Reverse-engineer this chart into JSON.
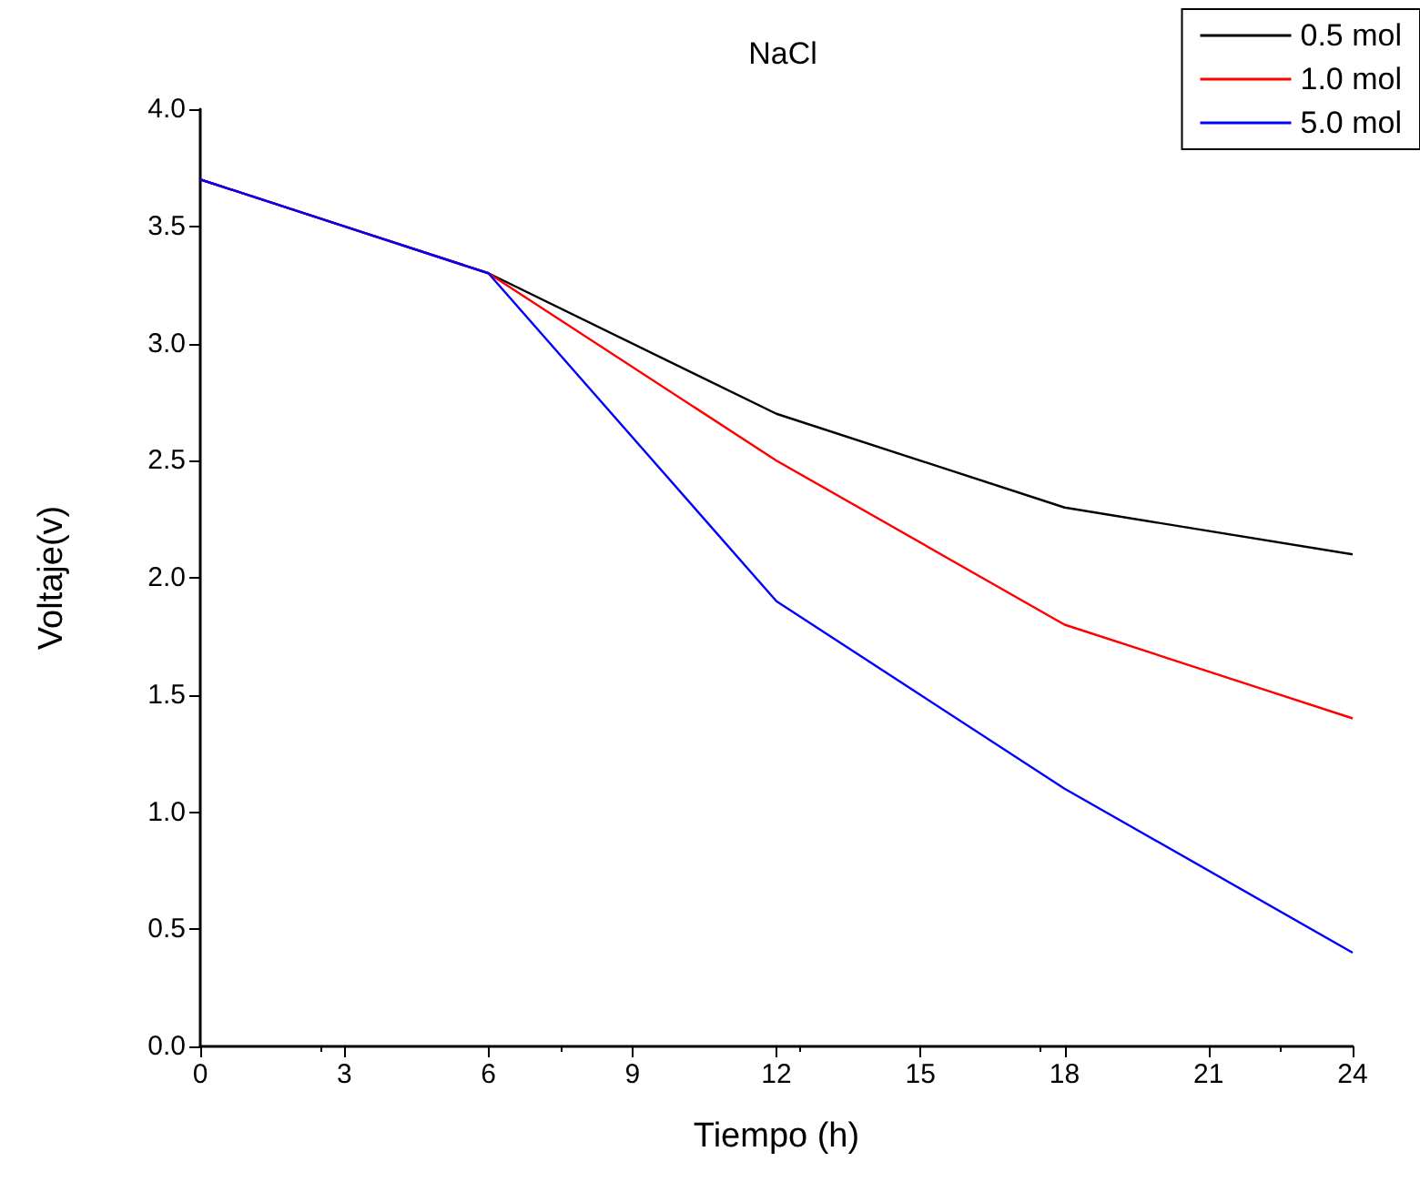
{
  "chart_data": {
    "type": "line",
    "title": "NaCl",
    "xlabel": "Tiempo (h)",
    "ylabel": "Voltaje(v)",
    "x": [
      0,
      6,
      12,
      18,
      24
    ],
    "series": [
      {
        "name": "0.5 mol",
        "color": "#000000",
        "values": [
          3.7,
          3.3,
          2.7,
          2.3,
          2.1
        ]
      },
      {
        "name": "1.0 mol",
        "color": "#ff0000",
        "values": [
          3.7,
          3.3,
          2.5,
          1.8,
          1.4
        ]
      },
      {
        "name": "5.0 mol",
        "color": "#0000ff",
        "values": [
          3.7,
          3.3,
          1.9,
          1.1,
          0.4
        ]
      }
    ],
    "xlim": [
      0,
      24
    ],
    "xticks": [
      0,
      3,
      6,
      9,
      12,
      15,
      18,
      21,
      24
    ],
    "ylim": [
      0,
      4
    ],
    "yticks": [
      {
        "value": 0,
        "label": "0.0"
      },
      {
        "value": 0.5,
        "label": "0.5"
      },
      {
        "value": 1,
        "label": "1.0"
      },
      {
        "value": 1.5,
        "label": "1.5"
      },
      {
        "value": 2,
        "label": "2.0"
      },
      {
        "value": 2.5,
        "label": "2.5"
      },
      {
        "value": 3,
        "label": "3.0"
      },
      {
        "value": 3.5,
        "label": "3.5"
      },
      {
        "value": 4,
        "label": "4.0"
      }
    ],
    "grid": false,
    "legend": "top right",
    "marker": "none",
    "line_style": "solid"
  }
}
